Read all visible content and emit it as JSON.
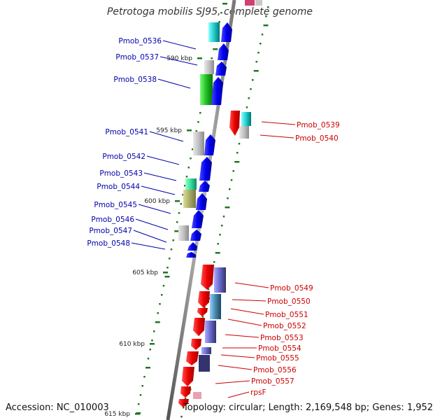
{
  "title": "Petrotoga mobilis SJ95, complete genome",
  "footer": {
    "accession": "Accession: NC_010003",
    "summary": "Topology: circular; Length: 2,169,548 bp; Genes: 1,952"
  },
  "scale_ticks": [
    {
      "label": "590 kbp"
    },
    {
      "label": "595 kbp"
    },
    {
      "label": "600 kbp"
    },
    {
      "label": "605 kbp"
    },
    {
      "label": "610 kbp"
    },
    {
      "label": "615 kbp"
    }
  ],
  "genes_left": [
    {
      "label": "Pmob_0536"
    },
    {
      "label": "Pmob_0537"
    },
    {
      "label": "Pmob_0538"
    },
    {
      "label": "Pmob_0541"
    },
    {
      "label": "Pmob_0542"
    },
    {
      "label": "Pmob_0543"
    },
    {
      "label": "Pmob_0544"
    },
    {
      "label": "Pmob_0545"
    },
    {
      "label": "Pmob_0546"
    },
    {
      "label": "Pmob_0547"
    },
    {
      "label": "Pmob_0548"
    }
  ],
  "genes_right": [
    {
      "label": "Pmob_0539"
    },
    {
      "label": "Pmob_0540"
    },
    {
      "label": "Pmob_0549"
    },
    {
      "label": "Pmob_0550"
    },
    {
      "label": "Pmob_0551"
    },
    {
      "label": "Pmob_0552"
    },
    {
      "label": "Pmob_0553"
    },
    {
      "label": "Pmob_0554"
    },
    {
      "label": "Pmob_0555"
    },
    {
      "label": "Pmob_0556"
    },
    {
      "label": "Pmob_0557"
    },
    {
      "label": "rpsF"
    }
  ],
  "colors": {
    "forward_strand": "#0000ee",
    "reverse_strand": "#ee0000",
    "backbone": "#888888",
    "tick_mark": "#227722",
    "left_label": "#0000aa",
    "right_label": "#cc0000"
  }
}
